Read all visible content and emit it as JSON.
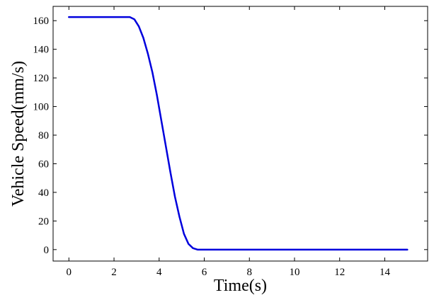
{
  "chart_data": {
    "type": "line",
    "title": "",
    "xlabel": "Time(s)",
    "ylabel": "Vehicle Speed(mm/s)",
    "xlim": [
      -0.7,
      15.9
    ],
    "ylim": [
      -8,
      170
    ],
    "xticks": [
      0,
      2,
      4,
      6,
      8,
      10,
      12,
      14
    ],
    "yticks": [
      0,
      20,
      40,
      60,
      80,
      100,
      120,
      140,
      160
    ],
    "grid": false,
    "legend": "none",
    "series": [
      {
        "color": "#0000dd",
        "x": [
          0,
          1,
          2,
          2.7,
          2.9,
          3.1,
          3.3,
          3.5,
          3.7,
          3.9,
          4.1,
          4.3,
          4.5,
          4.7,
          4.9,
          5.1,
          5.3,
          5.5,
          5.7,
          6,
          8,
          10,
          12,
          15
        ],
        "y": [
          162.5,
          162.5,
          162.5,
          162.5,
          161,
          156,
          148,
          137,
          124,
          108,
          90,
          72,
          54,
          37,
          23,
          11,
          4,
          1,
          0,
          0,
          0,
          0,
          0,
          0
        ]
      }
    ]
  }
}
